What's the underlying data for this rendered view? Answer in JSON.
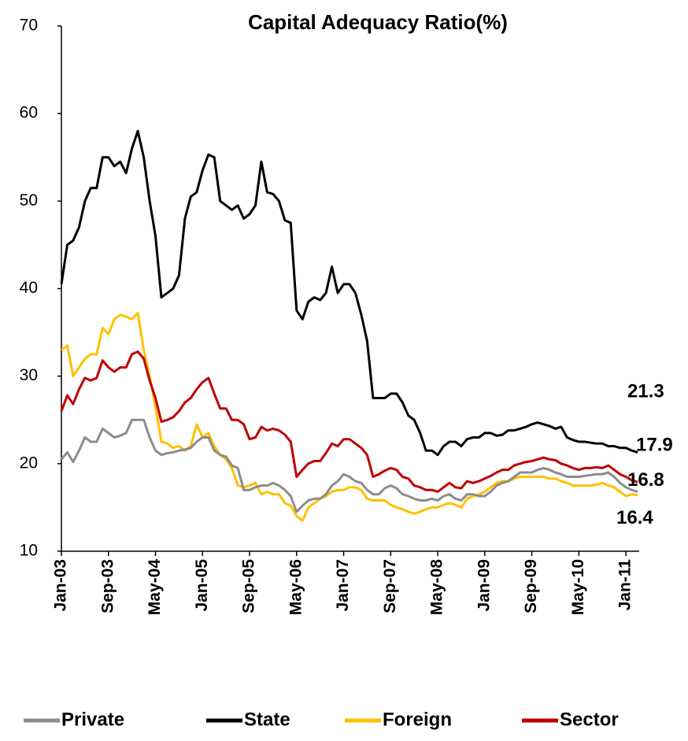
{
  "chart_data": {
    "type": "line",
    "title": "Capital Adequacy Ratio(%)",
    "categories": [
      "Jan-03",
      null,
      null,
      null,
      null,
      null,
      null,
      null,
      "Sep-03",
      null,
      null,
      null,
      null,
      null,
      null,
      null,
      "May-04",
      null,
      null,
      null,
      null,
      null,
      null,
      null,
      "Jan-05",
      null,
      null,
      null,
      null,
      null,
      null,
      null,
      "Sep-05",
      null,
      null,
      null,
      null,
      null,
      null,
      null,
      "May-06",
      null,
      null,
      null,
      null,
      null,
      null,
      null,
      "Jan-07",
      null,
      null,
      null,
      null,
      null,
      null,
      null,
      "Sep-07",
      null,
      null,
      null,
      null,
      null,
      null,
      null,
      "May-08",
      null,
      null,
      null,
      null,
      null,
      null,
      null,
      "Jan-09",
      null,
      null,
      null,
      null,
      null,
      null,
      null,
      "Sep-09",
      null,
      null,
      null,
      null,
      null,
      null,
      null,
      "May-10",
      null,
      null,
      null,
      null,
      null,
      null,
      null,
      "Jan-11",
      null,
      null
    ],
    "series": [
      {
        "name": "Private",
        "color": "#8c8c8c",
        "values": [
          20.5,
          21.3,
          20.2,
          21.5,
          23,
          22.5,
          22.5,
          24,
          23.5,
          23,
          23.2,
          23.5,
          25,
          25,
          25,
          23,
          21.5,
          21,
          21.2,
          21.3,
          21.5,
          21.6,
          21.8,
          22.5,
          23,
          23,
          21.5,
          21,
          20.8,
          19.8,
          19.5,
          17,
          17,
          17.3,
          17.5,
          17.5,
          17.8,
          17.5,
          17,
          16.3,
          14.5,
          15.2,
          15.8,
          16,
          16,
          16.5,
          17.5,
          18,
          18.8,
          18.5,
          18,
          17.8,
          17,
          16.5,
          16.5,
          17.2,
          17.5,
          17.2,
          16.5,
          16.3,
          16,
          15.8,
          15.8,
          16,
          15.8,
          16.3,
          16.5,
          16,
          15.8,
          16.5,
          16.5,
          16.3,
          16.3,
          16.8,
          17.5,
          17.8,
          18,
          18.5,
          19,
          19,
          19,
          19.3,
          19.5,
          19.3,
          19,
          18.8,
          18.5,
          18.5,
          18.5,
          18.6,
          18.7,
          18.8,
          18.8,
          19,
          18.5,
          17.8,
          17.3,
          17,
          16.8
        ]
      },
      {
        "name": "State",
        "color": "#000000",
        "values": [
          40.5,
          45,
          45.5,
          47,
          50,
          51.5,
          51.5,
          55,
          55,
          54,
          54.5,
          53.2,
          56,
          58,
          55,
          50,
          46,
          39,
          39.5,
          40,
          41.5,
          48,
          50.5,
          51,
          53.5,
          55.3,
          55,
          50,
          49.5,
          49,
          49.5,
          48,
          48.5,
          49.5,
          54.5,
          51,
          50.8,
          50,
          47.8,
          47.5,
          37.5,
          36.5,
          38.5,
          39,
          38.7,
          39.5,
          42.5,
          39.5,
          40.5,
          40.5,
          39.5,
          37,
          34,
          27.5,
          27.5,
          27.5,
          28,
          28,
          27,
          25.5,
          25,
          23.5,
          21.5,
          21.5,
          21,
          22,
          22.5,
          22.5,
          22,
          22.8,
          23,
          23,
          23.5,
          23.5,
          23.2,
          23.3,
          23.8,
          23.8,
          24,
          24.2,
          24.5,
          24.7,
          24.5,
          24.3,
          24,
          24.2,
          23,
          22.7,
          22.5,
          22.5,
          22.4,
          22.3,
          22.3,
          22,
          22,
          21.8,
          21.8,
          21.5,
          21.3
        ]
      },
      {
        "name": "Foreign",
        "color": "#ffc000",
        "values": [
          33,
          33.5,
          30,
          31,
          32,
          32.5,
          32.5,
          35.5,
          34.8,
          36.5,
          37,
          36.8,
          36.5,
          37.2,
          33,
          30,
          26.5,
          22.5,
          22.3,
          21.8,
          22,
          21.5,
          22,
          24.5,
          23,
          23.5,
          22,
          21,
          20.5,
          19.5,
          17.5,
          17.3,
          17.5,
          17.8,
          16.5,
          16.8,
          16.5,
          16.5,
          15.5,
          15.2,
          14,
          13.5,
          15,
          15.5,
          16,
          16.3,
          16.8,
          17,
          17,
          17.3,
          17.3,
          17,
          16,
          15.8,
          15.8,
          15.8,
          15.3,
          15,
          14.8,
          14.5,
          14.3,
          14.5,
          14.8,
          15,
          15,
          15.3,
          15.5,
          15.3,
          15,
          16,
          16.3,
          16.5,
          16.8,
          17.3,
          17.8,
          18,
          18,
          18.3,
          18.5,
          18.5,
          18.5,
          18.5,
          18.5,
          18.3,
          18.3,
          18,
          17.8,
          17.5,
          17.5,
          17.5,
          17.5,
          17.6,
          17.8,
          17.5,
          17.3,
          16.8,
          16.3,
          16.5,
          16.4
        ]
      },
      {
        "name": "Sector",
        "color": "#c00000",
        "values": [
          26,
          27.8,
          26.8,
          28.5,
          29.8,
          29.5,
          29.8,
          31.8,
          31,
          30.5,
          31,
          31,
          32.5,
          32.8,
          32,
          29.5,
          27.5,
          24.8,
          25,
          25.3,
          26,
          27,
          27.5,
          28.5,
          29.3,
          29.8,
          28,
          26.3,
          26.3,
          25,
          25,
          24.5,
          22.8,
          23,
          24.2,
          23.8,
          24,
          23.8,
          23.3,
          22.5,
          18.5,
          19.3,
          20,
          20.3,
          20.3,
          21.2,
          22.3,
          22,
          22.8,
          22.8,
          22.3,
          21.8,
          21,
          18.5,
          18.8,
          19.2,
          19.5,
          19.3,
          18.5,
          18.3,
          17.5,
          17.3,
          17,
          17,
          16.8,
          17.3,
          17.8,
          17.3,
          17.2,
          18,
          17.8,
          18,
          18.3,
          18.6,
          19,
          19.3,
          19.3,
          19.8,
          20,
          20.2,
          20.3,
          20.5,
          20.7,
          20.5,
          20.4,
          20,
          19.8,
          19.5,
          19.3,
          19.5,
          19.5,
          19.6,
          19.5,
          19.8,
          19.3,
          18.8,
          18.5,
          18.1,
          17.9
        ]
      }
    ],
    "ylim": [
      10,
      70
    ],
    "yticks": [
      10,
      20,
      30,
      40,
      50,
      60,
      70
    ],
    "grid": false,
    "legend": "bottom"
  }
}
